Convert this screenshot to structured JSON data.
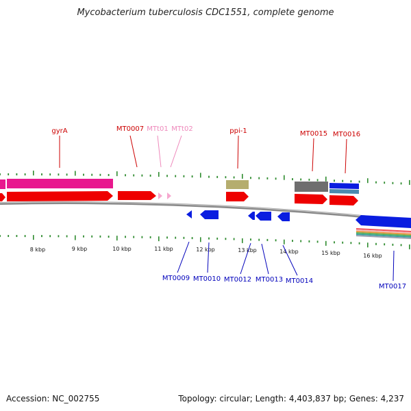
{
  "title": "Mycobacterium tuberculosis CDC1551, complete genome",
  "footer": {
    "accession": "Accession: NC_002755",
    "summary": "Topology: circular; Length: 4,403,837 bp; Genes: 4,237"
  },
  "colors": {
    "forward_label": "#cc0000",
    "reverse_label": "#0000bb",
    "trna_label": "#ee88bb",
    "forward_gene": "#ee0000",
    "reverse_gene": "#0a1de0",
    "tick": "#2e8b2e",
    "backbone": "#8a8a8a"
  },
  "axis": {
    "labels": [
      "8 kbp",
      "9 kbp",
      "10 kbp",
      "11 kbp",
      "12 kbp",
      "13 kbp",
      "14 kbp",
      "15 kbp",
      "16 kbp"
    ]
  },
  "forward_labels": [
    "gyrA",
    "MT0007",
    "MTt01",
    "MTt02",
    "ppi-1",
    "MT0015",
    "MT0016"
  ],
  "reverse_labels": [
    "MT0009",
    "MT0010",
    "MT0012",
    "MT0013",
    "MT0014",
    "MT0017"
  ]
}
